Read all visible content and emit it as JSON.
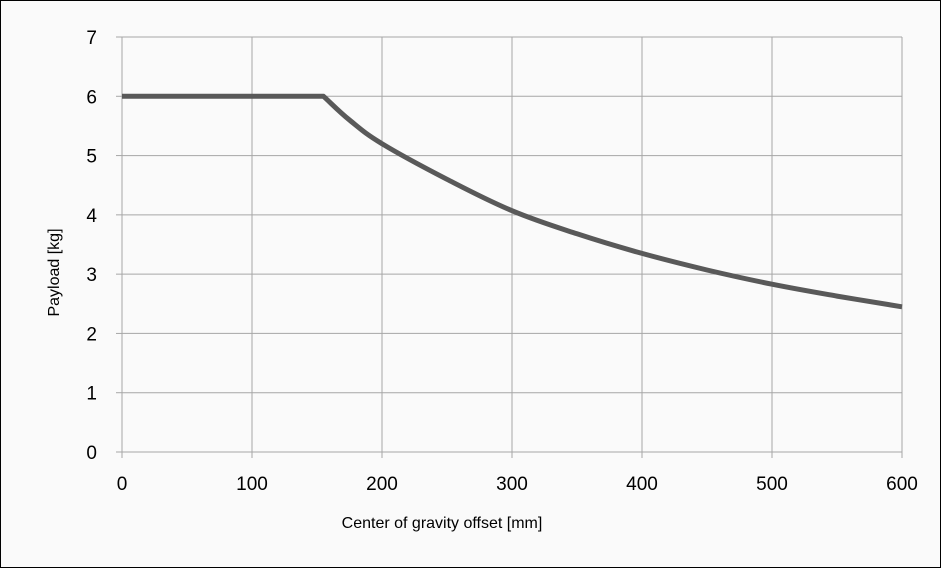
{
  "chart_data": {
    "type": "line",
    "title": "",
    "xlabel": "Center of gravity offset [mm]",
    "ylabel": "Payload [kg]",
    "xlim": [
      0,
      600
    ],
    "ylim": [
      0,
      7
    ],
    "x_ticks": [
      0,
      100,
      200,
      300,
      400,
      500,
      600
    ],
    "y_ticks": [
      0,
      1,
      2,
      3,
      4,
      5,
      6,
      7
    ],
    "x_tick_labels": [
      "0",
      "100",
      "200",
      "300",
      "400",
      "500",
      "600"
    ],
    "y_tick_labels": [
      "0",
      "1",
      "2",
      "3",
      "4",
      "5",
      "6",
      "7"
    ],
    "grid": true,
    "legend": "none",
    "series": [
      {
        "color": "#595959",
        "x": [
          0,
          50,
          100,
          155,
          175,
          200,
          250,
          300,
          350,
          400,
          450,
          500,
          550,
          600
        ],
        "y": [
          6,
          6,
          6,
          6,
          5.6,
          5.2,
          4.6,
          4.07,
          3.68,
          3.35,
          3.07,
          2.83,
          2.63,
          2.45
        ]
      }
    ]
  }
}
